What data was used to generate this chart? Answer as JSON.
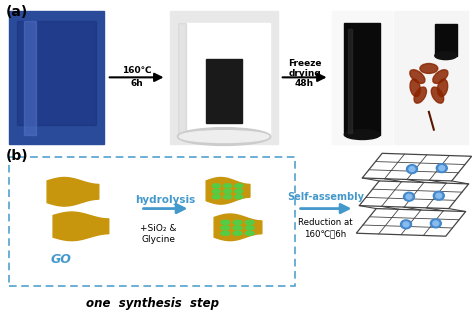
{
  "fig_width": 4.74,
  "fig_height": 3.15,
  "dpi": 100,
  "bg_color": "#ffffff",
  "panel_a_label": "(a)",
  "panel_b_label": "(b)",
  "arrow1_label_top": "160℃",
  "arrow1_label_bot": "6h",
  "arrow2_label_top": "Freeze\ndrying",
  "arrow2_label_bot": "48h",
  "hydrolysis_label": "hydrolysis",
  "plus_label": "+SiO₂ &\nGlycine",
  "self_assembly_label": "Self-assembly",
  "reduction_label": "Reduction at\n160℃，6h",
  "go_label": "GO",
  "one_step_label": "one  synthesis  step",
  "go_color": "#c8960c",
  "dot_color": "#55cc44",
  "dashed_box_color": "#4499cc",
  "arrow_color": "#4499cc",
  "photo1_bg": "#2a4a9a",
  "photo2_bg": "#e8e8e8",
  "photo3_bg": "#f0f0f0",
  "photo4_bg": "#f0f0f0",
  "net_color": "#444444",
  "blue_dot": "#4488cc",
  "blue_dot_light": "#88bbee"
}
